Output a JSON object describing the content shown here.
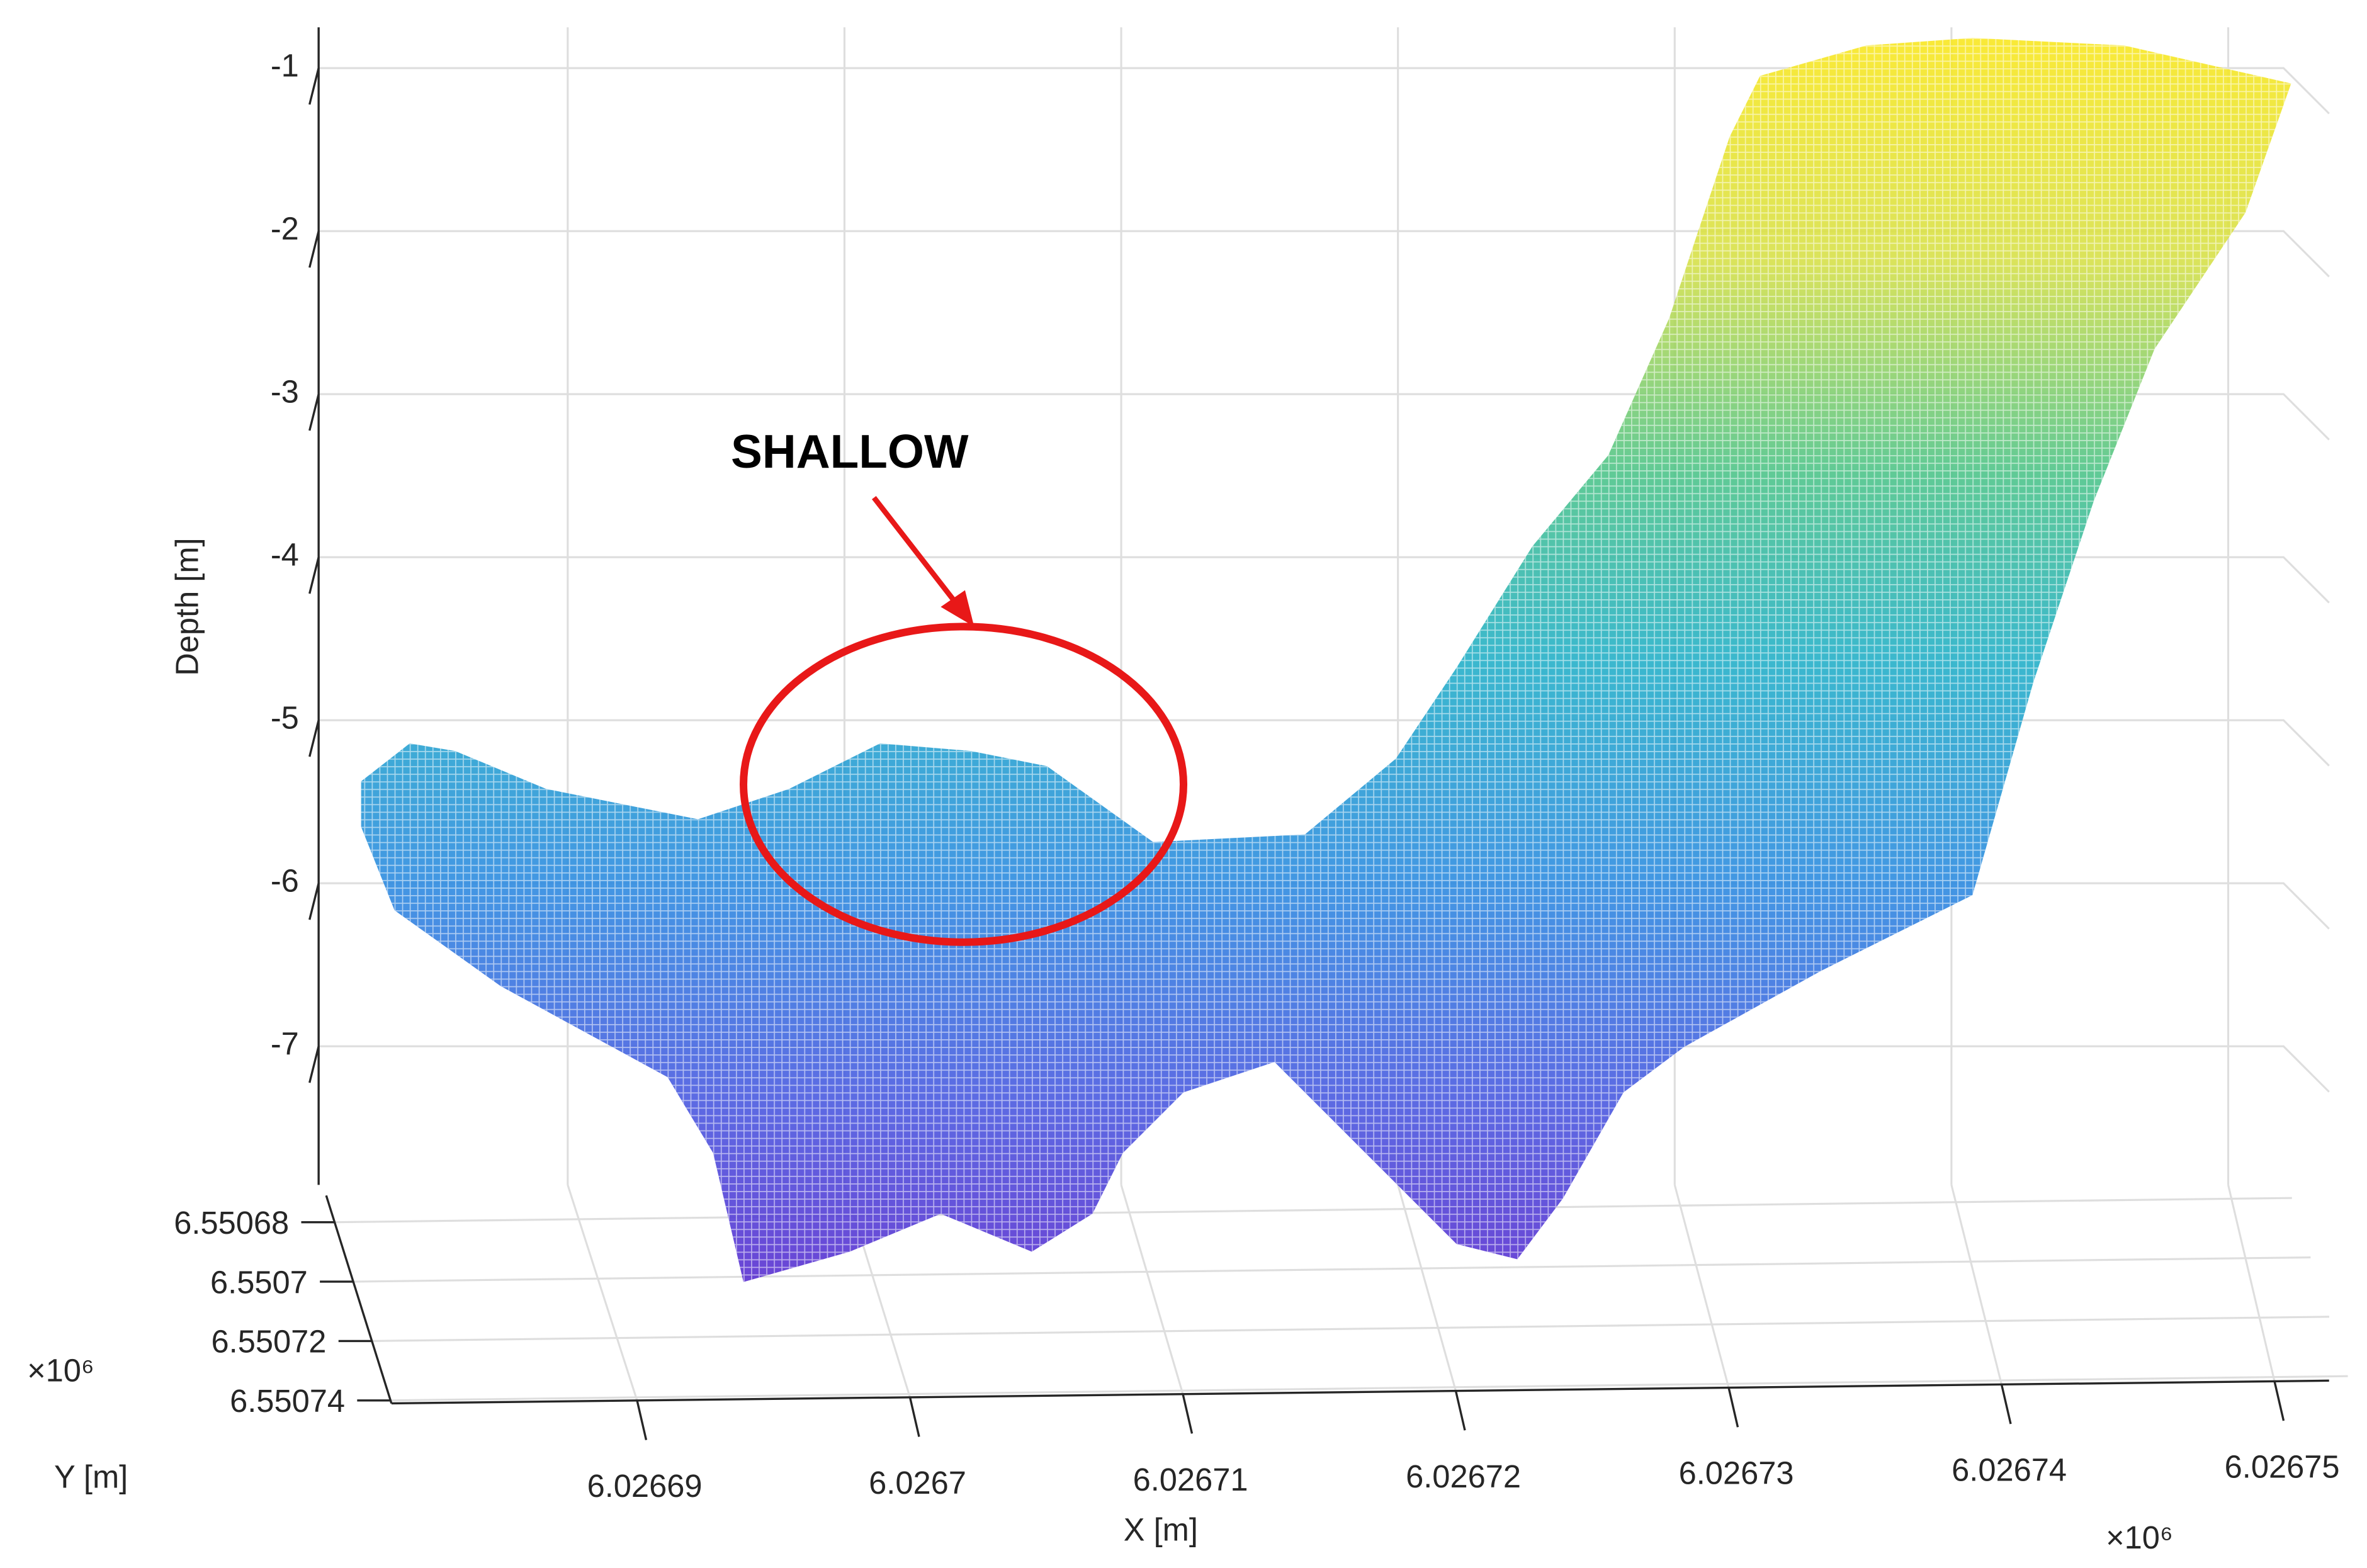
{
  "chart_data": {
    "type": "surface",
    "zlabel": "Depth [m]",
    "xlabel": "X [m]",
    "ylabel": "Y [m]",
    "x_multiplier": "×10⁶",
    "y_multiplier": "×10⁶",
    "annotation": "SHALLOW",
    "zlim": [
      -7.85,
      -0.75
    ],
    "zticks": [
      -1,
      -2,
      -3,
      -4,
      -5,
      -6,
      -7
    ],
    "xlim": [
      6026681,
      6026752
    ],
    "xticks": [
      {
        "value": 6026690,
        "label": "6.02669"
      },
      {
        "value": 6026700,
        "label": "6.0267"
      },
      {
        "value": 6026710,
        "label": "6.02671"
      },
      {
        "value": 6026720,
        "label": "6.02672"
      },
      {
        "value": 6026730,
        "label": "6.02673"
      },
      {
        "value": 6026740,
        "label": "6.02674"
      },
      {
        "value": 6026750,
        "label": "6.02675"
      }
    ],
    "ylim": [
      6550671,
      6550741
    ],
    "yticks": [
      {
        "value": 6550680,
        "label": "6.55068"
      },
      {
        "value": 6550700,
        "label": "6.5507"
      },
      {
        "value": 6550720,
        "label": "6.55072"
      },
      {
        "value": 6550740,
        "label": "6.55074"
      }
    ],
    "grid": true,
    "annotation_color": "#e81818"
  }
}
